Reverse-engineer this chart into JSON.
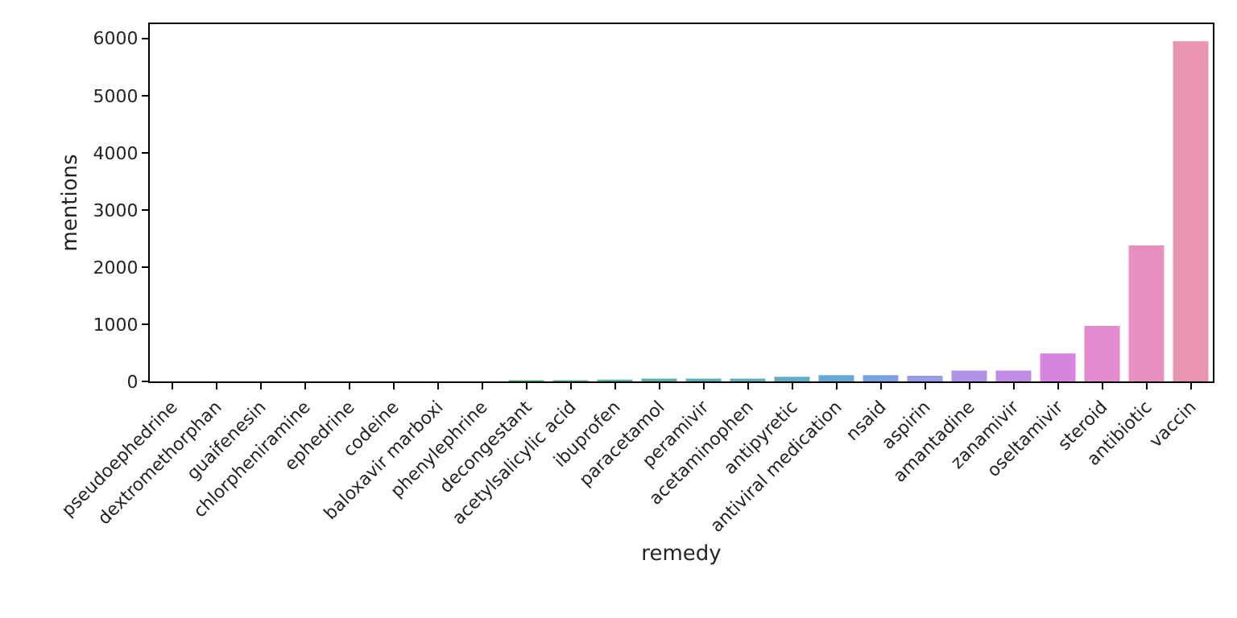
{
  "chart_data": {
    "type": "bar",
    "xlabel": "remedy",
    "ylabel": "mentions",
    "categories": [
      "pseudoephedrine",
      "dextromethorphan",
      "guaifenesin",
      "chlorpheniramine",
      "ephedrine",
      "codeine",
      "baloxavir marboxi",
      "phenylephrine",
      "decongestant",
      "acetylsalicylic acid",
      "ibuprofen",
      "paracetamol",
      "peramivir",
      "acetaminophen",
      "antipyretic",
      "antiviral medication",
      "nsaid",
      "aspirin",
      "amantadine",
      "zanamivir",
      "oseltamivir",
      "steroid",
      "antibiotic",
      "vaccin"
    ],
    "values": [
      0,
      0,
      0,
      0,
      0,
      0,
      0,
      0,
      20,
      20,
      30,
      50,
      50,
      50,
      80,
      110,
      110,
      100,
      190,
      190,
      490,
      970,
      2380,
      5950
    ],
    "colors": [
      "#e58a84",
      "#df9169",
      "#d09b57",
      "#bfa352",
      "#aba954",
      "#93ae55",
      "#74b258",
      "#56b46a",
      "#57b384",
      "#59b294",
      "#5ab19f",
      "#5bb0a8",
      "#5cafb0",
      "#5daeb9",
      "#5facc4",
      "#65a8d3",
      "#7aa2e0",
      "#969be5",
      "#ae93e6",
      "#c28be4",
      "#d784df",
      "#e38bcf",
      "#e78fbe",
      "#e994b2"
    ],
    "ylim": [
      0,
      6250
    ],
    "yticks": [
      0,
      1000,
      2000,
      3000,
      4000,
      5000,
      6000
    ],
    "grid": false,
    "legend": false
  }
}
